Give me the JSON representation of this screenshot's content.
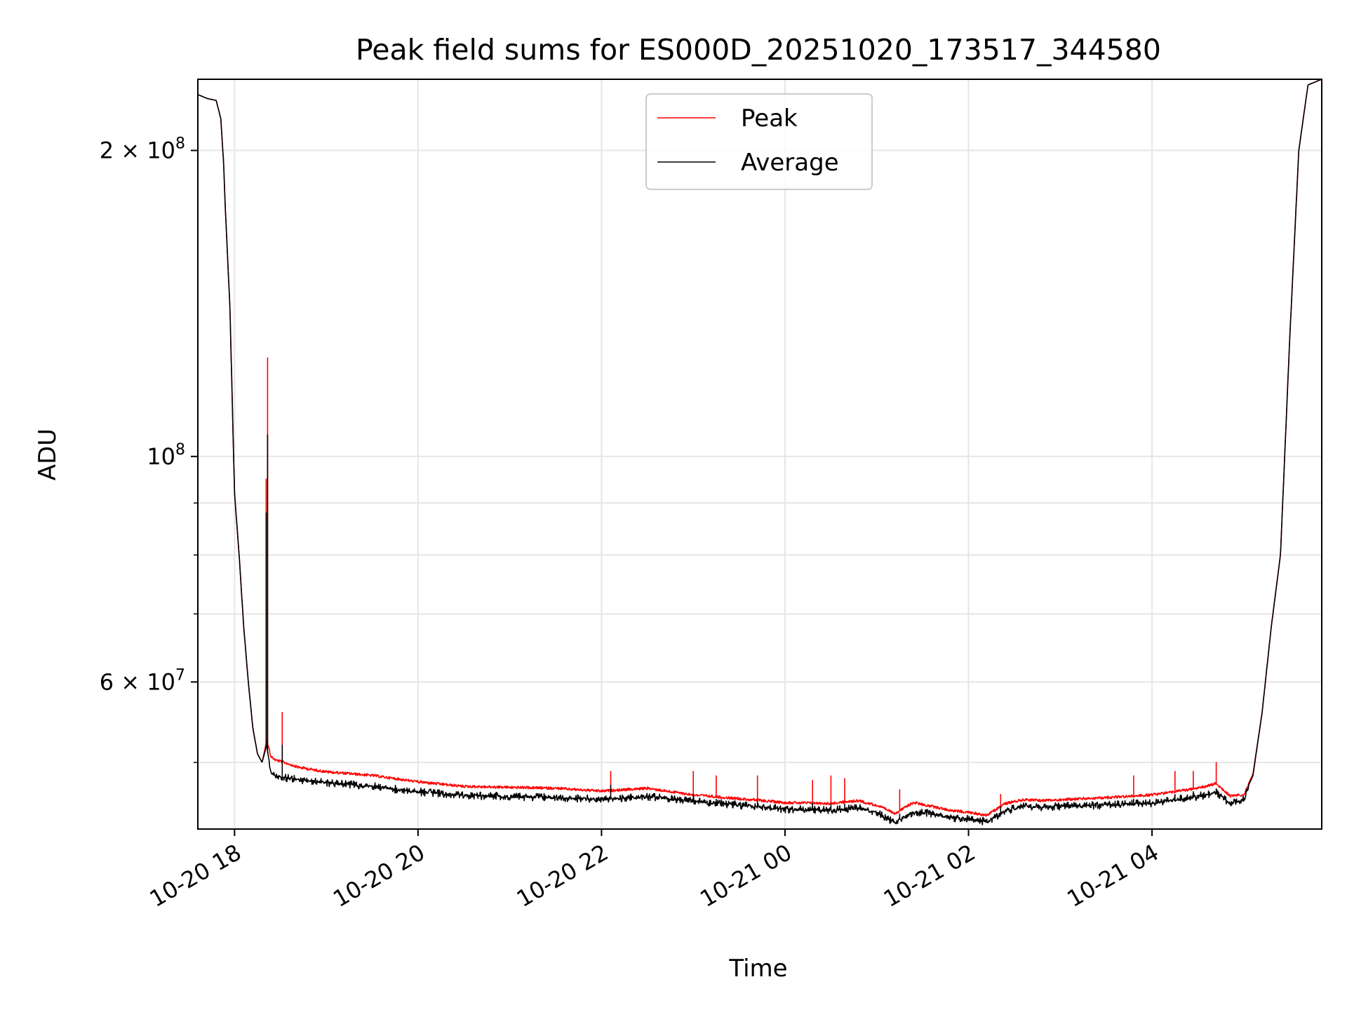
{
  "chart_data": {
    "type": "line",
    "title": "Peak field sums for ES000D_20251020_173517_344580",
    "xlabel": "Time",
    "ylabel": "ADU",
    "yscale": "log",
    "xlim_hours": [
      -0.4,
      11.85
    ],
    "ylim": [
      43000000,
      235000000
    ],
    "x_ticks": [
      {
        "hours": 0,
        "label": "10-20 18"
      },
      {
        "hours": 2,
        "label": "10-20 20"
      },
      {
        "hours": 4,
        "label": "10-20 22"
      },
      {
        "hours": 6,
        "label": "10-21 00"
      },
      {
        "hours": 8,
        "label": "10-21 02"
      },
      {
        "hours": 10,
        "label": "10-21 04"
      }
    ],
    "y_major_ticks": [
      {
        "value": 60000000,
        "label_mantissa": "6",
        "label_base": "10",
        "label_exp": "7"
      },
      {
        "value": 100000000,
        "label_mantissa": "",
        "label_base": "10",
        "label_exp": "8"
      },
      {
        "value": 200000000,
        "label_mantissa": "2",
        "label_base": "10",
        "label_exp": "8"
      }
    ],
    "y_minor_ticks": [
      50000000,
      70000000,
      80000000,
      90000000
    ],
    "legend": {
      "position": "upper center",
      "entries": [
        "Peak",
        "Average"
      ]
    },
    "grid": true,
    "series": [
      {
        "name": "Average",
        "color": "#000000",
        "x_hours": [
          -0.4,
          -0.3,
          -0.2,
          -0.15,
          -0.12,
          -0.1,
          -0.05,
          0.0,
          0.05,
          0.1,
          0.15,
          0.2,
          0.25,
          0.3,
          0.35,
          0.38,
          0.4,
          0.45,
          0.5,
          0.7,
          1.0,
          1.5,
          2.0,
          2.5,
          3.0,
          3.5,
          4.0,
          4.5,
          5.0,
          5.5,
          6.0,
          6.5,
          6.8,
          7.0,
          7.2,
          7.4,
          7.6,
          7.8,
          8.0,
          8.2,
          8.4,
          8.6,
          8.8,
          9.0,
          9.5,
          10.0,
          10.5,
          10.7,
          10.85,
          11.0,
          11.1,
          11.2,
          11.3,
          11.4,
          11.5,
          11.6,
          11.7,
          11.85
        ],
        "y": [
          227000000,
          225000000,
          224000000,
          215000000,
          195000000,
          175000000,
          140000000,
          92000000,
          80000000,
          68000000,
          60000000,
          54000000,
          51000000,
          50000000,
          52000000,
          50000000,
          49200000,
          49000000,
          48800000,
          48500000,
          48200000,
          47800000,
          47200000,
          46800000,
          46700000,
          46600000,
          46400000,
          46700000,
          46200000,
          45800000,
          45400000,
          45300000,
          45500000,
          45000000,
          44000000,
          45100000,
          44900000,
          44500000,
          44400000,
          44100000,
          45200000,
          45700000,
          45600000,
          45700000,
          45800000,
          46000000,
          46700000,
          47100000,
          46000000,
          46400000,
          48500000,
          56000000,
          68000000,
          80000000,
          130000000,
          200000000,
          232000000,
          235000000
        ]
      },
      {
        "name": "Peak",
        "color": "#ff0000",
        "x_hours": [
          -0.4,
          -0.3,
          -0.2,
          -0.15,
          -0.12,
          -0.1,
          -0.05,
          0.0,
          0.05,
          0.1,
          0.15,
          0.2,
          0.25,
          0.3,
          0.35,
          0.38,
          0.4,
          0.45,
          0.5,
          0.7,
          1.0,
          1.5,
          2.0,
          2.5,
          3.0,
          3.5,
          4.0,
          4.5,
          5.0,
          5.5,
          6.0,
          6.5,
          6.8,
          7.0,
          7.2,
          7.4,
          7.6,
          7.8,
          8.0,
          8.2,
          8.4,
          8.6,
          8.8,
          9.0,
          9.5,
          10.0,
          10.5,
          10.7,
          10.85,
          11.0,
          11.1,
          11.2,
          11.3,
          11.4,
          11.5,
          11.6,
          11.7,
          11.85
        ],
        "y": [
          227000000,
          225000000,
          224000000,
          215000000,
          195000000,
          175000000,
          140000000,
          92000000,
          80000000,
          68000000,
          60000000,
          54000000,
          51000000,
          50000000,
          52500000,
          51500000,
          50800000,
          50400000,
          50300000,
          49600000,
          49100000,
          48700000,
          48000000,
          47500000,
          47400000,
          47300000,
          47000000,
          47300000,
          46600000,
          46200000,
          45800000,
          45700000,
          46000000,
          45500000,
          44700000,
          45800000,
          45400000,
          45000000,
          44800000,
          44500000,
          45700000,
          46100000,
          46000000,
          46100000,
          46300000,
          46600000,
          47300000,
          47800000,
          46500000,
          46600000,
          48700000,
          56000000,
          68000000,
          80000000,
          130000000,
          200000000,
          232000000,
          235000000
        ]
      }
    ],
    "spikes": [
      {
        "x_hours": 0.36,
        "peak": 125000000,
        "average": 105000000
      },
      {
        "x_hours": 0.345,
        "peak": 95000000,
        "average": 88000000
      },
      {
        "x_hours": 0.52,
        "peak": 56000000,
        "average": 52000000
      },
      {
        "x_hours": 4.1,
        "peak": 49000000,
        "average": 47500000
      },
      {
        "x_hours": 5.0,
        "peak": 49000000,
        "average": 46500000
      },
      {
        "x_hours": 5.25,
        "peak": 48500000,
        "average": 46000000
      },
      {
        "x_hours": 5.7,
        "peak": 48500000,
        "average": 45800000
      },
      {
        "x_hours": 6.3,
        "peak": 48000000,
        "average": 45600000
      },
      {
        "x_hours": 6.5,
        "peak": 48500000,
        "average": 45500000
      },
      {
        "x_hours": 6.65,
        "peak": 48200000,
        "average": 45500000
      },
      {
        "x_hours": 7.25,
        "peak": 47000000,
        "average": 44500000
      },
      {
        "x_hours": 8.35,
        "peak": 46500000,
        "average": 45200000
      },
      {
        "x_hours": 9.8,
        "peak": 48500000,
        "average": 46000000
      },
      {
        "x_hours": 10.25,
        "peak": 49000000,
        "average": 46500000
      },
      {
        "x_hours": 10.45,
        "peak": 49000000,
        "average": 46800000
      },
      {
        "x_hours": 10.7,
        "peak": 50000000,
        "average": 47100000
      }
    ]
  }
}
